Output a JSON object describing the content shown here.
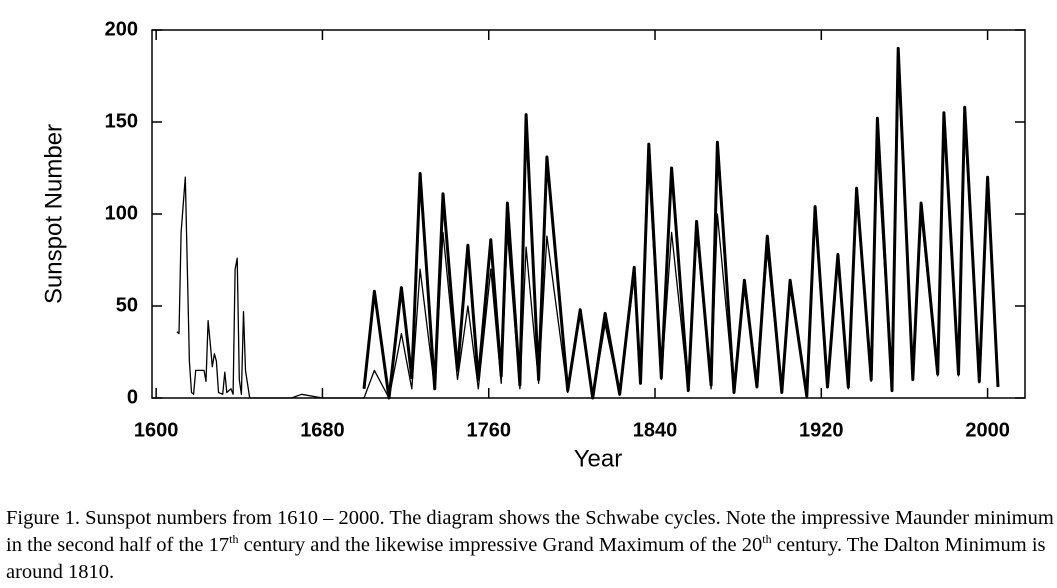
{
  "chart_data": {
    "type": "line",
    "xlabel": "Year",
    "ylabel": "Sunspot Number",
    "xlim": [
      1598,
      2018
    ],
    "ylim": [
      0,
      200
    ],
    "xticks": [
      1600,
      1680,
      1760,
      1840,
      1920,
      2000
    ],
    "yticks": [
      0,
      50,
      100,
      150,
      200
    ],
    "series": [
      {
        "color": "#000000",
        "line_width": 1.3,
        "x": [
          1610,
          1611,
          1612,
          1614,
          1616,
          1617,
          1618,
          1619,
          1623,
          1624,
          1625,
          1626,
          1627,
          1628,
          1629,
          1630,
          1632,
          1633,
          1634,
          1636,
          1637,
          1638,
          1639,
          1640,
          1641,
          1642,
          1643,
          1645,
          1660,
          1665,
          1670,
          1680,
          1690,
          1700,
          1705,
          1712,
          1718,
          1723,
          1727,
          1734,
          1738,
          1745,
          1750,
          1755,
          1761,
          1766,
          1769,
          1775,
          1778,
          1784,
          1788,
          1798,
          1804,
          1810,
          1816,
          1823,
          1830,
          1833,
          1837,
          1843,
          1848,
          1856,
          1860,
          1867,
          1870,
          1878,
          1883,
          1889,
          1894,
          1901,
          1905,
          1913,
          1917,
          1923,
          1928,
          1933,
          1937,
          1944,
          1947,
          1954,
          1957,
          1964,
          1968,
          1976,
          1979,
          1986,
          1989,
          1996
        ],
        "values": [
          36,
          35,
          90,
          120,
          20,
          3,
          2,
          15,
          15,
          9,
          42,
          30,
          17,
          24,
          20,
          3,
          2,
          14,
          3,
          5,
          2,
          70,
          76,
          10,
          2,
          47,
          15,
          0,
          0,
          0,
          2,
          0,
          0,
          0,
          15,
          0,
          35,
          5,
          70,
          5,
          90,
          10,
          50,
          5,
          70,
          8,
          90,
          5,
          82,
          8,
          88,
          3,
          45,
          0,
          40,
          2,
          66,
          8,
          125,
          10,
          90,
          4,
          90,
          5,
          100,
          3,
          60,
          6,
          80,
          3,
          60,
          1,
          100,
          6,
          75,
          5,
          110,
          9,
          135,
          4,
          180,
          10,
          100,
          12,
          150,
          12,
          150,
          8
        ]
      },
      {
        "color": "#000000",
        "line_width": 3,
        "x": [
          1700,
          1705,
          1712,
          1718,
          1723,
          1727,
          1734,
          1738,
          1745,
          1750,
          1755,
          1761,
          1766,
          1769,
          1775,
          1778,
          1784,
          1788,
          1798,
          1804,
          1810,
          1816,
          1823,
          1830,
          1833,
          1837,
          1843,
          1848,
          1856,
          1860,
          1867,
          1870,
          1878,
          1883,
          1889,
          1894,
          1901,
          1905,
          1913,
          1917,
          1923,
          1928,
          1933,
          1937,
          1944,
          1947,
          1954,
          1957,
          1964,
          1968,
          1976,
          1979,
          1986,
          1989,
          1996,
          2000,
          2005
        ],
        "values": [
          5,
          58,
          0,
          60,
          11,
          122,
          5,
          111,
          15,
          83,
          10,
          86,
          12,
          106,
          7,
          154,
          10,
          131,
          4,
          48,
          0,
          46,
          2,
          71,
          8,
          138,
          11,
          125,
          4,
          96,
          7,
          139,
          3,
          64,
          6,
          88,
          3,
          64,
          1,
          104,
          6,
          78,
          6,
          114,
          10,
          152,
          4,
          190,
          10,
          106,
          13,
          155,
          13,
          158,
          9,
          120,
          6
        ]
      }
    ]
  },
  "caption": [
    "Figure 1. Sunspot numbers from 1610 – 2000. The diagram shows the Schwabe cycles. Note the impressive Maunder minimum in the second half of the 17",
    "th",
    " century and the likewise impressive Grand Maximum of the 20",
    "th",
    " century. The Dalton Minimum is around 1810."
  ]
}
